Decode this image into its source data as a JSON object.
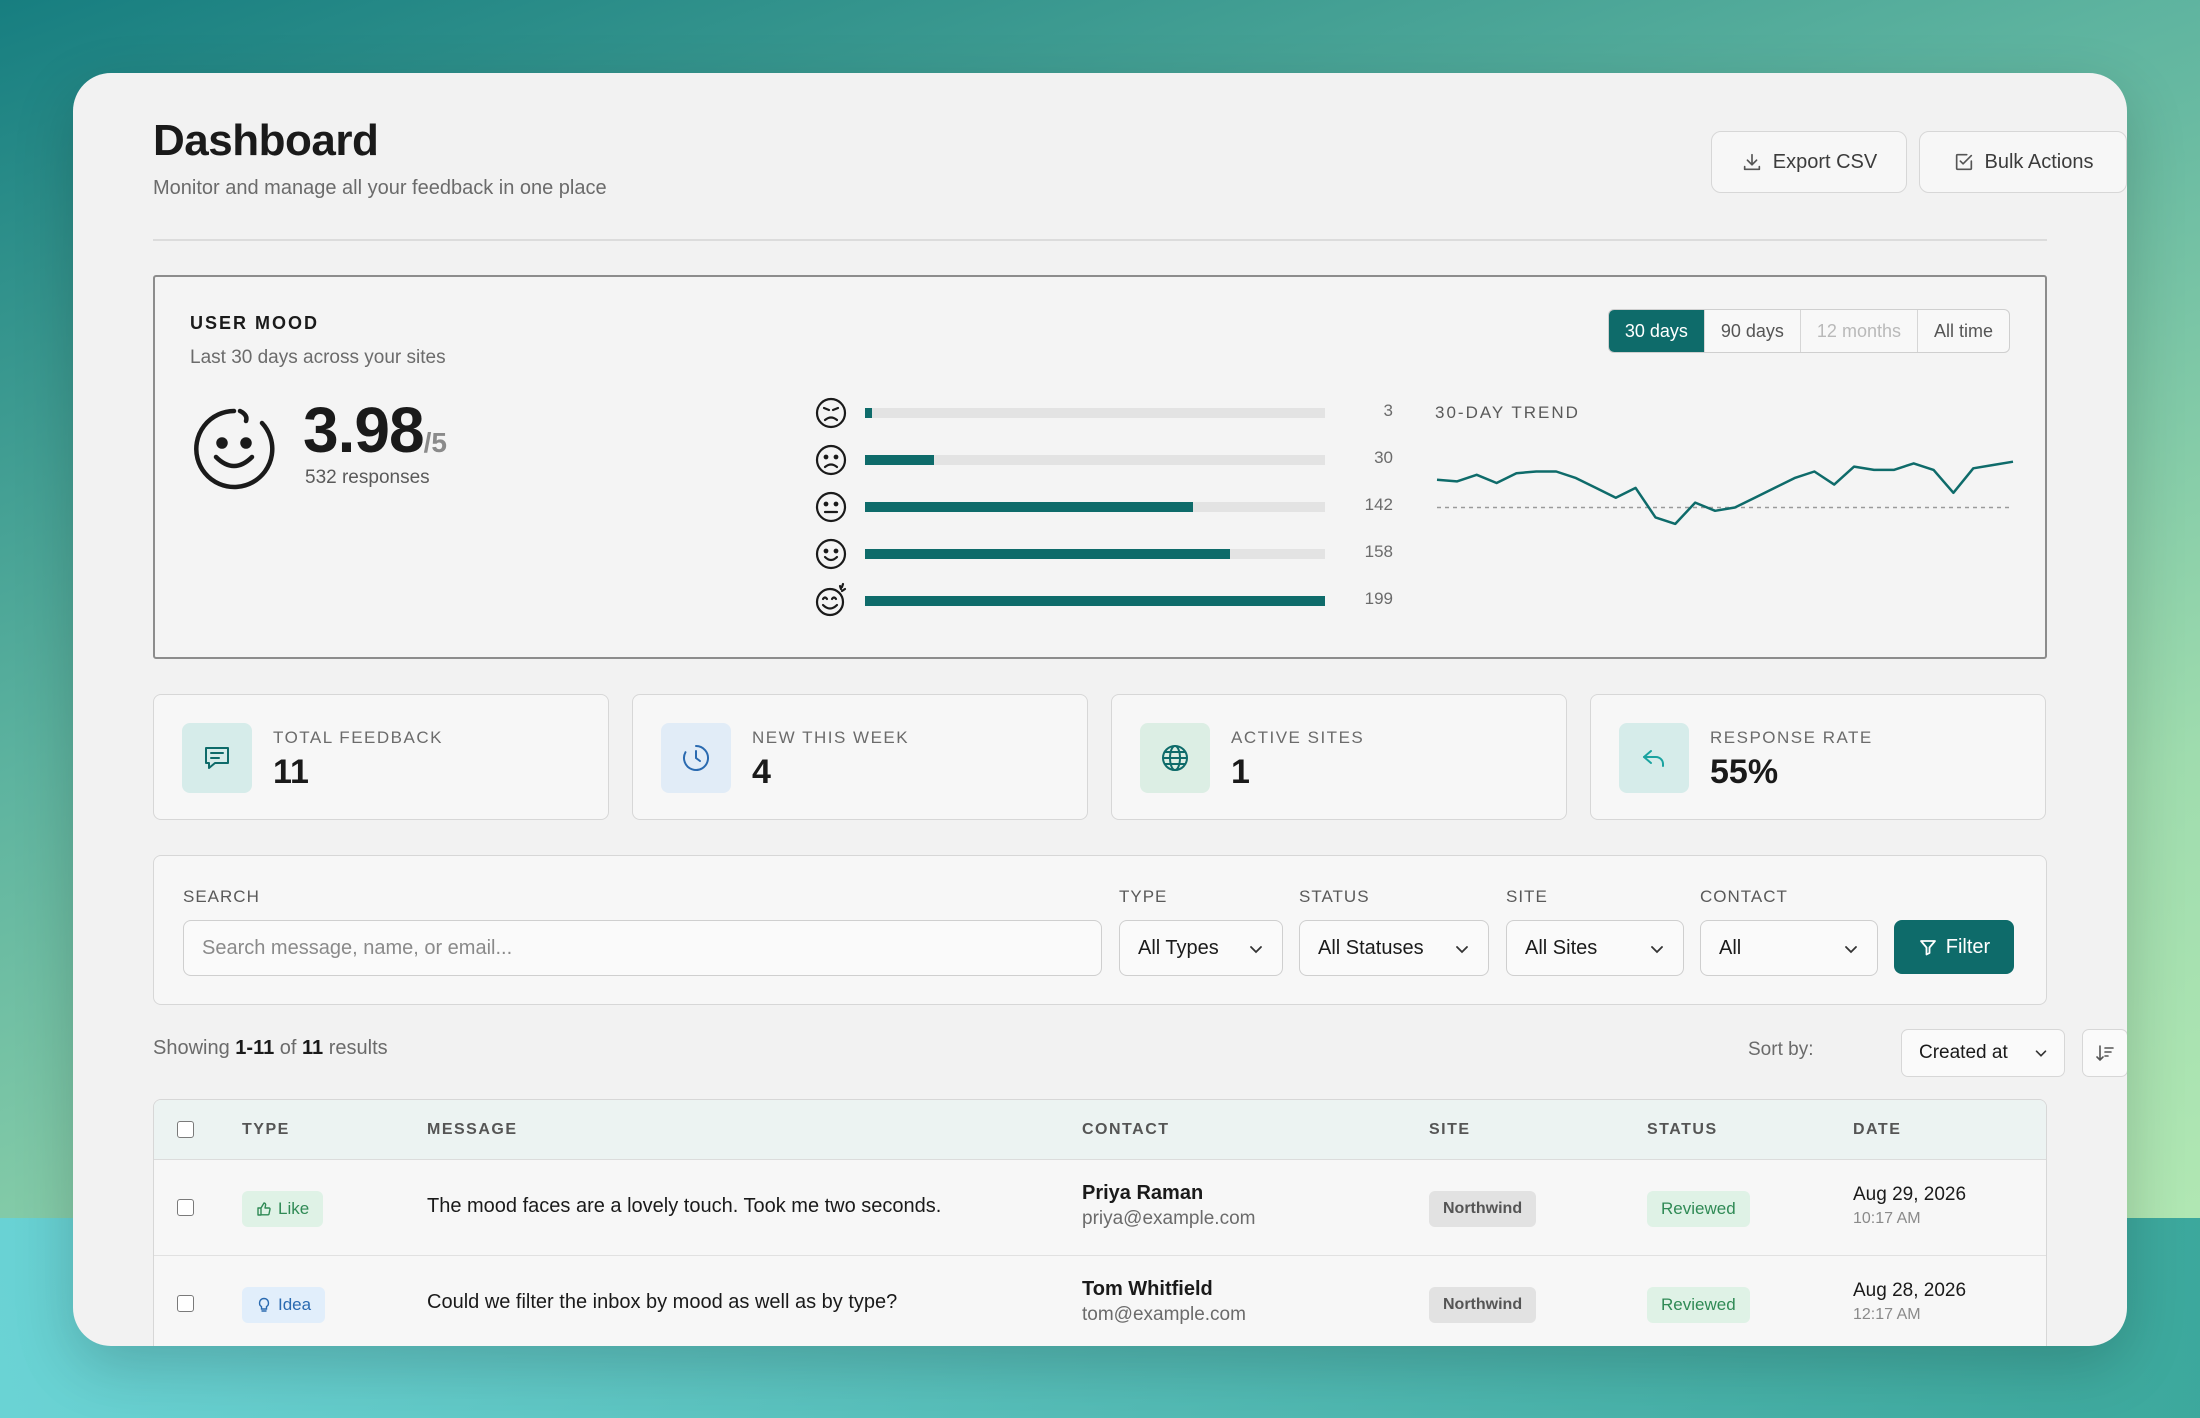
{
  "header": {
    "title": "Dashboard",
    "subtitle": "Monitor and manage all your feedback in one place",
    "export_label": "Export CSV",
    "bulk_label": "Bulk Actions"
  },
  "mood": {
    "heading": "USER MOOD",
    "subtitle": "Last 30 days across your sites",
    "score": "3.98",
    "score_max": "/5",
    "responses": "532 responses",
    "ranges": [
      "30 days",
      "90 days",
      "12 months",
      "All time"
    ],
    "active_range": "30 days",
    "distribution": [
      {
        "icon": "angry-face-icon",
        "count": "3",
        "value": 3
      },
      {
        "icon": "sad-face-icon",
        "count": "30",
        "value": 30
      },
      {
        "icon": "neutral-face-icon",
        "count": "142",
        "value": 142
      },
      {
        "icon": "happy-face-icon",
        "count": "158",
        "value": 158
      },
      {
        "icon": "delighted-face-icon",
        "count": "199",
        "value": 199
      }
    ],
    "trend_label": "30-DAY TREND",
    "accent": "#0e6b6a"
  },
  "chart_data": {
    "type": "line",
    "title": "30-DAY TREND",
    "x": [
      1,
      2,
      3,
      4,
      5,
      6,
      7,
      8,
      9,
      10,
      11,
      12,
      13,
      14,
      15,
      16,
      17,
      18,
      19,
      20,
      21,
      22,
      23,
      24,
      25,
      26,
      27,
      28,
      29,
      30
    ],
    "series": [
      {
        "values": [
          4.05,
          4.04,
          4.08,
          4.03,
          4.09,
          4.1,
          4.1,
          4.06,
          4.0,
          3.94,
          4.0,
          3.82,
          3.78,
          3.91,
          3.86,
          3.88,
          3.94,
          4.0,
          4.06,
          4.1,
          4.02,
          4.13,
          4.11,
          4.11,
          4.15,
          4.11,
          3.97,
          4.12,
          4.14,
          4.16
        ]
      }
    ],
    "reference_value": 3.88,
    "ylim": [
      3.7,
      4.25
    ]
  },
  "stats": [
    {
      "label": "TOTAL FEEDBACK",
      "value": "11",
      "icon": "chat-message-icon"
    },
    {
      "label": "NEW THIS WEEK",
      "value": "4",
      "icon": "clock-icon"
    },
    {
      "label": "ACTIVE SITES",
      "value": "1",
      "icon": "globe-icon"
    },
    {
      "label": "RESPONSE RATE",
      "value": "55%",
      "icon": "reply-icon"
    }
  ],
  "filters": {
    "search_label": "SEARCH",
    "search_placeholder": "Search message, name, or email...",
    "type_label": "TYPE",
    "type_value": "All Types",
    "status_label": "STATUS",
    "status_value": "All Statuses",
    "site_label": "SITE",
    "site_value": "All Sites",
    "contact_label": "CONTACT",
    "contact_value": "All",
    "filter_button": "Filter"
  },
  "results": {
    "prefix": "Showing",
    "range": "1-11",
    "of": "of",
    "total": "11",
    "suffix": "results",
    "sort_label": "Sort by:",
    "sort_value": "Created at"
  },
  "table": {
    "headers": [
      "TYPE",
      "MESSAGE",
      "CONTACT",
      "SITE",
      "STATUS",
      "DATE"
    ],
    "rows": [
      {
        "type": "Like",
        "message": "The mood faces are a lovely touch. Took me two seconds.",
        "name": "Priya Raman",
        "email": "priya@example.com",
        "site": "Northwind",
        "status": "Reviewed",
        "date": "Aug 29, 2026",
        "time": "10:17 AM"
      },
      {
        "type": "Idea",
        "message": "Could we filter the inbox by mood as well as by type?",
        "name": "Tom Whitfield",
        "email": "tom@example.com",
        "site": "Northwind",
        "status": "Reviewed",
        "date": "Aug 28, 2026",
        "time": "12:17 AM"
      }
    ]
  }
}
